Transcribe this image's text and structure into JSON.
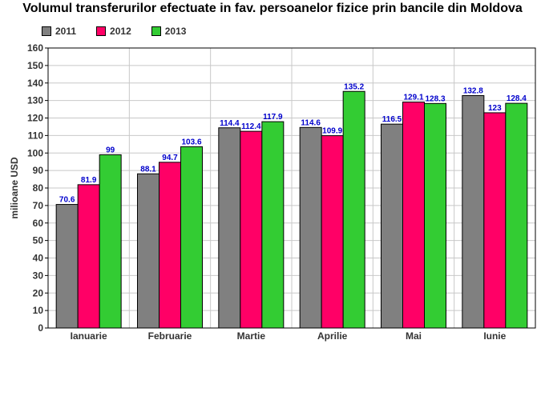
{
  "chart_data": {
    "type": "bar",
    "title": "Volumul transferurilor efectuate in fav. persoanelor fizice prin bancile din Moldova",
    "xlabel": "",
    "ylabel": "milioane USD",
    "categories": [
      "Ianuarie",
      "Februarie",
      "Martie",
      "Aprilie",
      "Mai",
      "Iunie"
    ],
    "series": [
      {
        "name": "2011",
        "color": "#808080",
        "values": [
          70.6,
          88.1,
          114.4,
          114.6,
          116.5,
          132.8
        ]
      },
      {
        "name": "2012",
        "color": "#ff0066",
        "values": [
          81.9,
          94.7,
          112.4,
          109.9,
          129.1,
          123
        ]
      },
      {
        "name": "2013",
        "color": "#33cc33",
        "values": [
          99,
          103.6,
          117.9,
          135.2,
          128.3,
          128.4
        ]
      }
    ],
    "ylim": [
      0,
      160
    ],
    "yticks": [
      0,
      10,
      20,
      30,
      40,
      50,
      60,
      70,
      80,
      90,
      100,
      110,
      120,
      130,
      140,
      150,
      160
    ],
    "grid": true,
    "legend_position": "top-left"
  }
}
